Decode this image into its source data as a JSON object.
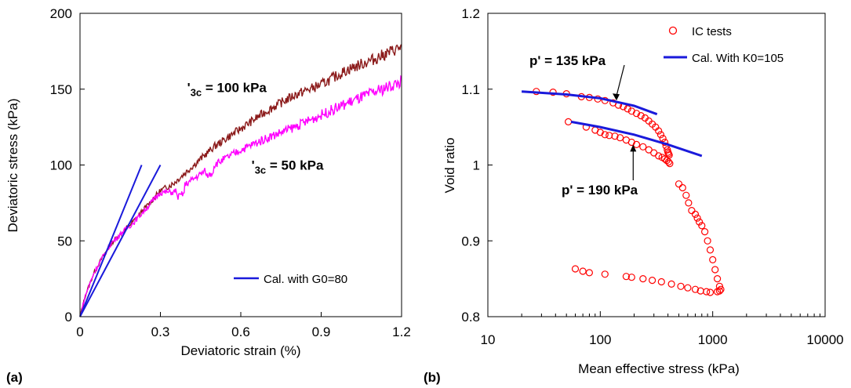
{
  "chart_data": [
    {
      "panel_label": "(a)",
      "type": "line",
      "xlabel": "Deviatoric strain (%)",
      "ylabel": "Deviatoric stress (kPa)",
      "xlim": [
        0,
        1.2
      ],
      "ylim": [
        0,
        200
      ],
      "xticks": [
        "0",
        "0.3",
        "0.6",
        "0.9",
        "1.2"
      ],
      "yticks": [
        "0",
        "50",
        "100",
        "150",
        "200"
      ],
      "grid": false,
      "legend": {
        "placement": "bottom-right",
        "entries": [
          "Cal. with G0=80"
        ]
      },
      "annotations": [
        {
          "text": "'3c = 100 kPa",
          "main": "'",
          "sub": "3c",
          "rest": " = 100 kPa",
          "x": 0.4,
          "y": 148
        },
        {
          "text": "'3c = 50 kPa",
          "main": "'",
          "sub": "3c",
          "rest": " = 50 kPa",
          "x": 0.64,
          "y": 97
        }
      ],
      "series": [
        {
          "style": "noisy-line",
          "color": "#8b1a1a",
          "x": [
            0,
            0.02,
            0.05,
            0.08,
            0.12,
            0.16,
            0.2,
            0.25,
            0.3,
            0.35,
            0.4,
            0.5,
            0.6,
            0.7,
            0.8,
            0.9,
            1.0,
            1.1,
            1.2
          ],
          "y": [
            0,
            14,
            28,
            38,
            49,
            56,
            63,
            73,
            83,
            88,
            96,
            112,
            124,
            136,
            146,
            153,
            163,
            170,
            178
          ]
        },
        {
          "style": "noisy-line",
          "color": "#ff00ff",
          "x": [
            0,
            0.02,
            0.05,
            0.08,
            0.12,
            0.16,
            0.2,
            0.25,
            0.3,
            0.35,
            0.4,
            0.5,
            0.6,
            0.7,
            0.8,
            0.9,
            1.0,
            1.1,
            1.2
          ],
          "y": [
            0,
            14,
            28,
            38,
            49,
            56,
            62,
            72,
            82,
            82,
            88,
            100,
            110,
            118,
            125,
            133,
            141,
            148,
            155
          ]
        },
        {
          "style": "line",
          "color": "#1a1adb",
          "x": [
            0,
            0.23
          ],
          "y": [
            0,
            100
          ]
        },
        {
          "style": "line",
          "color": "#1a1adb",
          "x": [
            0,
            0.3
          ],
          "y": [
            0,
            100
          ]
        }
      ]
    },
    {
      "panel_label": "(b)",
      "type": "scatter",
      "xlabel": "Mean effective stress (kPa)",
      "ylabel": "Void ratio",
      "xscale": "log",
      "xlim": [
        10,
        10000
      ],
      "ylim": [
        0.8,
        1.2
      ],
      "xticks": [
        "10",
        "100",
        "1000",
        "10000"
      ],
      "yticks": [
        "0.8",
        "0.9",
        "1",
        "1.1",
        "1.2"
      ],
      "grid": false,
      "legend": {
        "placement": "top-right",
        "entries": [
          "IC tests",
          "Cal. With K0=105"
        ]
      },
      "annotations": [
        {
          "text": "p' = 135 kPa",
          "x": 135,
          "y": 1.085
        },
        {
          "text": "p' = 190 kPa",
          "x": 190,
          "y": 1.027
        }
      ],
      "series": [
        {
          "style": "markers",
          "color": "#ff0000",
          "x": [
            27,
            38,
            50,
            68,
            80,
            95,
            110,
            130,
            145,
            160,
            175,
            190,
            210,
            230,
            250,
            270,
            290,
            310,
            330,
            345,
            360,
            375,
            385,
            395,
            400,
            405,
            410,
            52,
            75,
            90,
            100,
            110,
            120,
            135,
            150,
            170,
            190,
            210,
            240,
            270,
            300,
            330,
            355,
            375,
            390,
            405,
            415,
            500,
            540,
            580,
            610,
            650,
            700,
            730,
            760,
            800,
            850,
            900,
            950,
            1000,
            1050,
            1100,
            1150,
            1180,
            1150,
            1100,
            950,
            880,
            780,
            700,
            600,
            520,
            430,
            350,
            290,
            240,
            190,
            170,
            110,
            80,
            70,
            60
          ],
          "y": [
            1.097,
            1.096,
            1.094,
            1.09,
            1.089,
            1.087,
            1.085,
            1.082,
            1.079,
            1.077,
            1.074,
            1.071,
            1.068,
            1.065,
            1.062,
            1.058,
            1.054,
            1.05,
            1.045,
            1.04,
            1.035,
            1.03,
            1.025,
            1.02,
            1.017,
            1.015,
            1.013,
            1.057,
            1.05,
            1.046,
            1.043,
            1.04,
            1.039,
            1.038,
            1.036,
            1.033,
            1.03,
            1.027,
            1.024,
            1.02,
            1.016,
            1.012,
            1.01,
            1.008,
            1.006,
            1.004,
            1.002,
            0.975,
            0.97,
            0.96,
            0.95,
            0.94,
            0.935,
            0.93,
            0.925,
            0.92,
            0.912,
            0.9,
            0.888,
            0.875,
            0.862,
            0.85,
            0.84,
            0.836,
            0.834,
            0.833,
            0.832,
            0.833,
            0.834,
            0.836,
            0.838,
            0.84,
            0.843,
            0.846,
            0.848,
            0.85,
            0.852,
            0.853,
            0.856,
            0.858,
            0.86,
            0.863
          ]
        },
        {
          "style": "line",
          "color": "#1a1adb",
          "x": [
            20,
            50,
            100,
            200,
            320
          ],
          "y": [
            1.097,
            1.093,
            1.088,
            1.078,
            1.067
          ]
        },
        {
          "style": "line",
          "color": "#1a1adb",
          "x": [
            55,
            100,
            200,
            400,
            800
          ],
          "y": [
            1.057,
            1.05,
            1.04,
            1.027,
            1.012
          ]
        }
      ]
    }
  ]
}
